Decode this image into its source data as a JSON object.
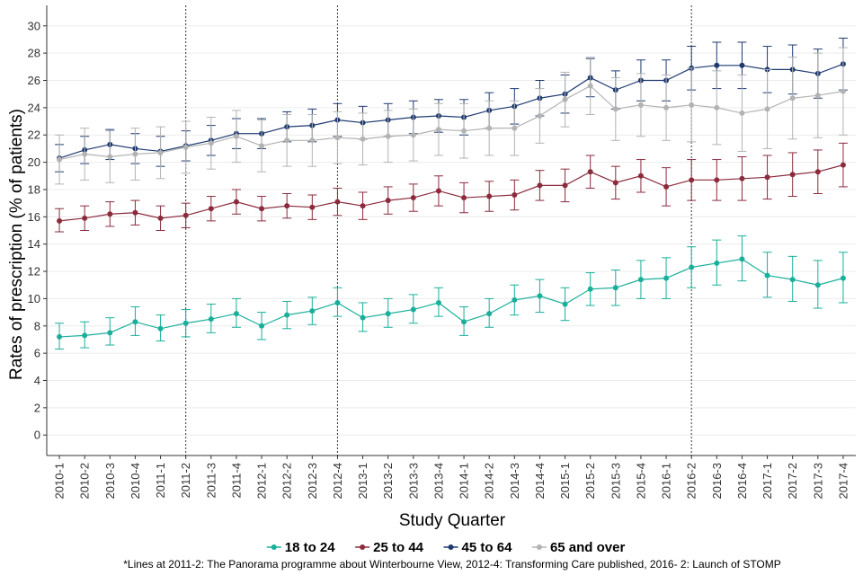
{
  "chart_data": {
    "type": "line",
    "title": "",
    "xlabel": "Study Quarter",
    "ylabel": "Rates of prescription (% of patients)",
    "ylim": [
      -1.5,
      31.5
    ],
    "yticks": [
      0,
      2,
      4,
      6,
      8,
      10,
      12,
      14,
      16,
      18,
      20,
      22,
      24,
      26,
      28,
      30
    ],
    "grid": "horizontal",
    "legend_position": "bottom",
    "categories": [
      "2010-1",
      "2010-2",
      "2010-3",
      "2010-4",
      "2011-1",
      "2011-2",
      "2011-3",
      "2011-4",
      "2012-1",
      "2012-2",
      "2012-3",
      "2012-4",
      "2013-1",
      "2013-2",
      "2013-3",
      "2013-4",
      "2014-1",
      "2014-2",
      "2014-3",
      "2014-4",
      "2015-1",
      "2015-2",
      "2015-3",
      "2015-4",
      "2016-1",
      "2016-2",
      "2016-3",
      "2016-4",
      "2017-1",
      "2017-2",
      "2017-3",
      "2017-4"
    ],
    "reference_lines": [
      "2011-2",
      "2012-4",
      "2016-2"
    ],
    "footnote": "*Lines at 2011-2: The Panorama programme about Winterbourne View, 2012-4: Transforming Care published, 2016- 2: Launch of STOMP",
    "series": [
      {
        "name": "18 to 24",
        "color": "#1aaf9b",
        "values": [
          7.2,
          7.3,
          7.5,
          8.3,
          7.8,
          8.2,
          8.5,
          8.9,
          8.0,
          8.8,
          9.1,
          9.7,
          8.6,
          8.9,
          9.2,
          9.7,
          8.3,
          8.9,
          9.9,
          10.2,
          9.6,
          10.7,
          10.8,
          11.4,
          11.5,
          12.3,
          12.6,
          12.9,
          11.7,
          11.4,
          11.0,
          11.5
        ],
        "lower": [
          6.3,
          6.4,
          6.6,
          7.3,
          6.9,
          7.2,
          7.5,
          7.9,
          7.0,
          7.8,
          8.1,
          8.7,
          7.6,
          7.9,
          8.2,
          8.7,
          7.3,
          7.9,
          8.8,
          9.0,
          8.4,
          9.5,
          9.5,
          10.0,
          10.0,
          10.8,
          11.0,
          11.3,
          10.1,
          9.8,
          9.3,
          9.7
        ],
        "upper": [
          8.2,
          8.3,
          8.6,
          9.4,
          8.8,
          9.2,
          9.6,
          10.0,
          9.0,
          9.8,
          10.1,
          10.8,
          9.7,
          10.0,
          10.3,
          10.8,
          9.4,
          10.0,
          11.0,
          11.4,
          10.8,
          11.9,
          12.1,
          12.8,
          13.0,
          13.8,
          14.3,
          14.6,
          13.4,
          13.1,
          12.8,
          13.4
        ]
      },
      {
        "name": "25 to 44",
        "color": "#8b2b3c",
        "values": [
          15.7,
          15.9,
          16.2,
          16.3,
          15.9,
          16.1,
          16.6,
          17.1,
          16.6,
          16.8,
          16.7,
          17.1,
          16.8,
          17.2,
          17.4,
          17.9,
          17.4,
          17.5,
          17.6,
          18.3,
          18.3,
          19.3,
          18.5,
          19.0,
          18.2,
          18.7,
          18.7,
          18.8,
          18.9,
          19.1,
          19.3,
          19.8
        ],
        "lower": [
          14.9,
          15.0,
          15.3,
          15.4,
          15.0,
          15.2,
          15.7,
          16.2,
          15.7,
          15.9,
          15.8,
          16.1,
          15.8,
          16.2,
          16.4,
          16.8,
          16.3,
          16.4,
          16.5,
          17.2,
          17.1,
          18.1,
          17.3,
          17.8,
          16.8,
          17.2,
          17.2,
          17.2,
          17.3,
          17.5,
          17.7,
          18.2
        ],
        "upper": [
          16.6,
          16.8,
          17.1,
          17.2,
          16.8,
          17.0,
          17.5,
          18.0,
          17.5,
          17.7,
          17.6,
          18.1,
          17.8,
          18.2,
          18.4,
          19.0,
          18.5,
          18.6,
          18.7,
          19.4,
          19.5,
          20.5,
          19.7,
          20.2,
          19.6,
          20.2,
          20.2,
          20.4,
          20.5,
          20.7,
          20.9,
          21.4
        ]
      },
      {
        "name": "45 to 64",
        "color": "#1f3a70",
        "values": [
          20.3,
          20.9,
          21.3,
          21.0,
          20.8,
          21.2,
          21.6,
          22.1,
          22.1,
          22.6,
          22.7,
          23.1,
          22.9,
          23.1,
          23.3,
          23.4,
          23.3,
          23.8,
          24.1,
          24.7,
          25.0,
          26.2,
          25.3,
          26.0,
          26.0,
          26.9,
          27.1,
          27.1,
          26.8,
          26.8,
          26.5,
          27.2
        ],
        "lower": [
          19.3,
          19.9,
          20.2,
          19.9,
          19.7,
          20.1,
          20.5,
          21.0,
          21.0,
          21.5,
          21.5,
          21.9,
          21.7,
          21.9,
          22.1,
          22.2,
          22.0,
          22.5,
          22.8,
          23.4,
          23.6,
          24.8,
          23.9,
          24.5,
          24.5,
          25.3,
          25.4,
          25.4,
          25.1,
          25.0,
          24.7,
          25.3
        ],
        "upper": [
          21.3,
          21.9,
          22.4,
          22.1,
          21.9,
          22.3,
          22.7,
          23.2,
          23.2,
          23.7,
          23.9,
          24.3,
          24.1,
          24.3,
          24.5,
          24.6,
          24.6,
          25.1,
          25.4,
          26.0,
          26.4,
          27.6,
          26.7,
          27.5,
          27.5,
          28.5,
          28.8,
          28.8,
          28.5,
          28.6,
          28.3,
          29.1
        ]
      },
      {
        "name": "65 and over",
        "color": "#b3b3b3",
        "values": [
          20.2,
          20.6,
          20.4,
          20.6,
          20.7,
          21.1,
          21.4,
          21.9,
          21.2,
          21.6,
          21.6,
          21.8,
          21.7,
          21.9,
          22.0,
          22.4,
          22.3,
          22.5,
          22.5,
          23.4,
          24.6,
          25.6,
          23.9,
          24.2,
          24.0,
          24.2,
          24.0,
          23.6,
          23.9,
          24.7,
          24.9,
          25.2
        ],
        "lower": [
          18.4,
          18.7,
          18.5,
          18.7,
          18.8,
          19.2,
          19.5,
          20.0,
          19.3,
          19.7,
          19.7,
          19.9,
          19.8,
          20.0,
          20.1,
          20.5,
          20.3,
          20.5,
          20.5,
          21.4,
          22.6,
          23.5,
          21.6,
          21.9,
          21.6,
          21.5,
          21.3,
          20.8,
          21.0,
          21.7,
          21.8,
          22.0
        ],
        "upper": [
          22.0,
          22.5,
          22.3,
          22.5,
          22.6,
          23.0,
          23.3,
          23.8,
          23.1,
          23.5,
          23.5,
          23.7,
          23.6,
          23.8,
          23.9,
          24.3,
          24.3,
          24.5,
          24.5,
          25.4,
          26.6,
          27.7,
          26.2,
          26.5,
          26.4,
          26.9,
          26.7,
          26.4,
          26.8,
          27.7,
          28.0,
          28.4
        ]
      }
    ]
  }
}
